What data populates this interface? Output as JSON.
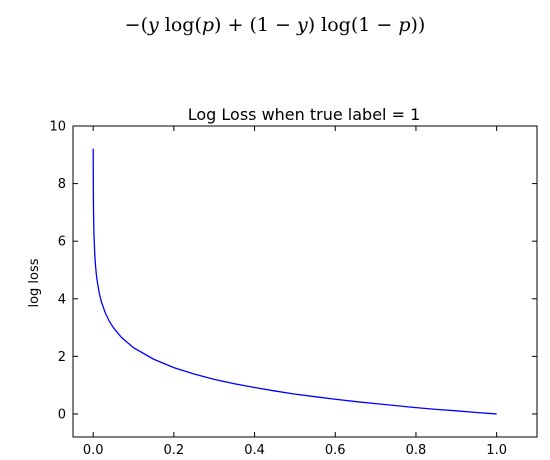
{
  "formula": {
    "text": "−(y log(p) + (1 − y) log(1 − p))",
    "tokens": [
      {
        "t": "−(",
        "s": "rm"
      },
      {
        "t": "y",
        "s": "it"
      },
      {
        "t": " log(",
        "s": "rm"
      },
      {
        "t": "p",
        "s": "it"
      },
      {
        "t": ") + (1 − ",
        "s": "rm"
      },
      {
        "t": "y",
        "s": "it"
      },
      {
        "t": ") log(1 − ",
        "s": "rm"
      },
      {
        "t": "p",
        "s": "it"
      },
      {
        "t": "))",
        "s": "rm"
      }
    ]
  },
  "chart_data": {
    "type": "line",
    "title": "Log Loss when true label = 1",
    "xlabel": "",
    "ylabel": "log loss",
    "xlim": [
      -0.05,
      1.1
    ],
    "ylim": [
      -0.8,
      10
    ],
    "x_ticks": [
      0.0,
      0.2,
      0.4,
      0.6,
      0.8,
      1.0
    ],
    "x_tick_labels": [
      "0.0",
      "0.2",
      "0.4",
      "0.6",
      "0.8",
      "1.0"
    ],
    "y_ticks": [
      0,
      2,
      4,
      6,
      8,
      10
    ],
    "y_tick_labels": [
      "0",
      "2",
      "4",
      "6",
      "8",
      "10"
    ],
    "grid": false,
    "legend": "none",
    "series": [
      {
        "color": "#0000ff",
        "function": "-log(p)",
        "x": [
          0.0001,
          0.0003,
          0.0006,
          0.001,
          0.002,
          0.004,
          0.006,
          0.008,
          0.01,
          0.015,
          0.02,
          0.03,
          0.04,
          0.05,
          0.07,
          0.1,
          0.15,
          0.2,
          0.25,
          0.3,
          0.35,
          0.4,
          0.45,
          0.5,
          0.55,
          0.6,
          0.65,
          0.7,
          0.75,
          0.8,
          0.85,
          0.9,
          0.95,
          1.0
        ],
        "y": [
          9.21,
          8.11,
          7.42,
          6.91,
          6.21,
          5.52,
          5.12,
          4.83,
          4.61,
          4.2,
          3.91,
          3.51,
          3.22,
          3.0,
          2.66,
          2.3,
          1.9,
          1.61,
          1.39,
          1.2,
          1.05,
          0.92,
          0.8,
          0.69,
          0.6,
          0.51,
          0.43,
          0.36,
          0.29,
          0.22,
          0.16,
          0.11,
          0.05,
          0.0
        ]
      }
    ]
  }
}
